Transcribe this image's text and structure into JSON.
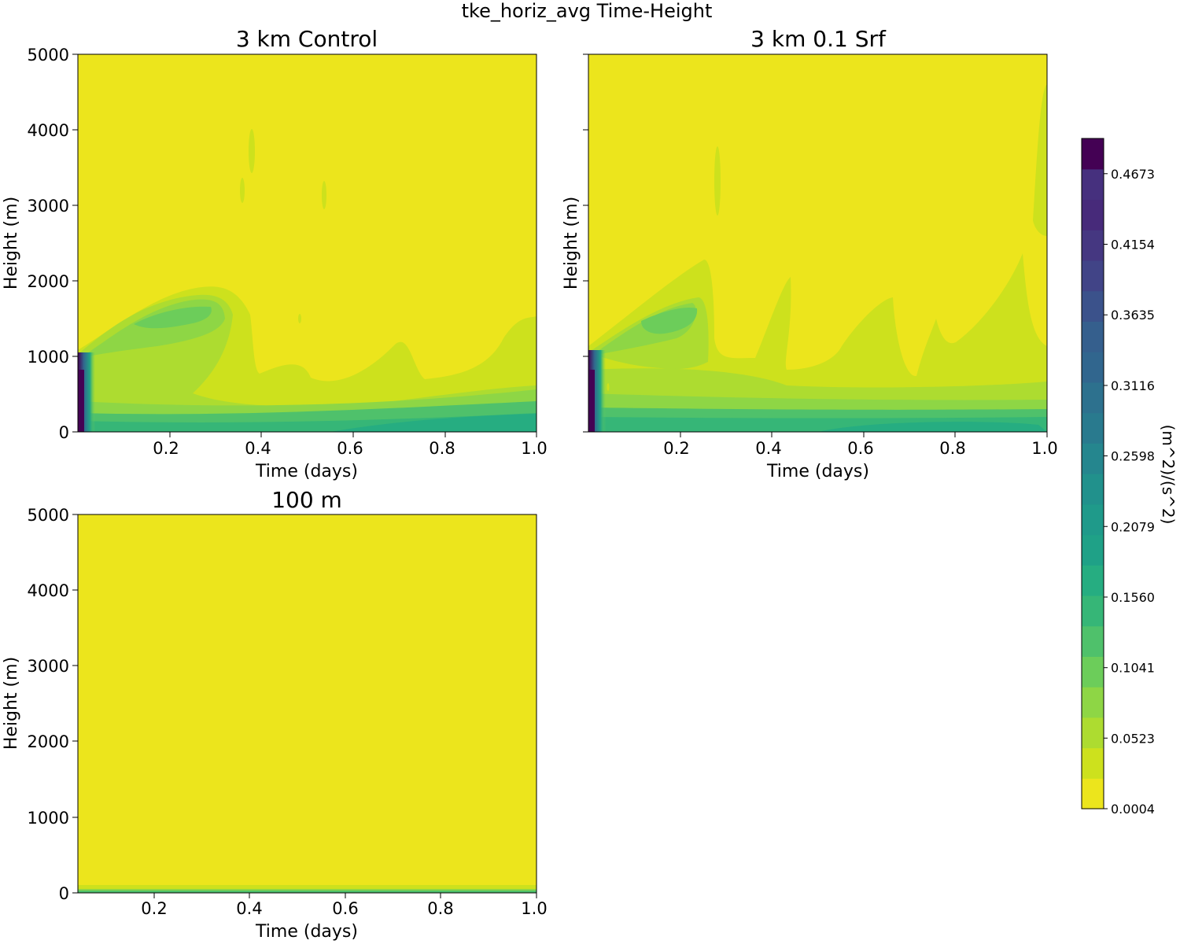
{
  "figure": {
    "suptitle": "tke_horiz_avg Time-Height"
  },
  "colors": {
    "yellow": "#ece51c",
    "levels": [
      "#ece51c",
      "#cde11d",
      "#addc30",
      "#8ed645",
      "#6ccd5a",
      "#4fc16b",
      "#36b677",
      "#26ad81",
      "#1fa187",
      "#1f9a8a",
      "#21918c",
      "#25868e",
      "#297a8e",
      "#2d718e",
      "#31668e",
      "#355f8d",
      "#3b528b",
      "#414487",
      "#453781",
      "#472a7a",
      "#46307e",
      "#440154"
    ]
  },
  "chart_data": [
    {
      "type": "heatmap",
      "title": "3 km Control",
      "xlabel": "Time (days)",
      "ylabel": "Height (m)",
      "xlim": [
        0.0,
        1.0
      ],
      "ylim": [
        0,
        5000
      ],
      "xticks": [
        "0.2",
        "0.4",
        "0.6",
        "0.8",
        "1.0"
      ],
      "yticks": [
        "0",
        "1000",
        "2000",
        "3000",
        "4000",
        "5000"
      ]
    },
    {
      "type": "heatmap",
      "title": "3 km 0.1 Srf",
      "xlabel": "Time (days)",
      "ylabel": "Height (m)",
      "xlim": [
        0.0,
        1.0
      ],
      "ylim": [
        0,
        5000
      ],
      "xticks": [
        "0.2",
        "0.4",
        "0.6",
        "0.8",
        "1.0"
      ],
      "yticks": []
    },
    {
      "type": "heatmap",
      "title": "100 m",
      "xlabel": "Time (days)",
      "ylabel": "Height (m)",
      "xlim": [
        0.04,
        1.0
      ],
      "ylim": [
        0,
        5000
      ],
      "xticks": [
        "0.2",
        "0.4",
        "0.6",
        "0.8",
        "1.0"
      ],
      "yticks": [
        "0",
        "1000",
        "2000",
        "3000",
        "4000",
        "5000"
      ]
    }
  ],
  "colorbar": {
    "label": "(m^2)/(s^2)",
    "min": 0.0004,
    "max": 0.4932,
    "ticks": [
      "0.0004",
      "0.0523",
      "0.1041",
      "0.1560",
      "0.2079",
      "0.2598",
      "0.3116",
      "0.3635",
      "0.4154",
      "0.4673"
    ]
  }
}
